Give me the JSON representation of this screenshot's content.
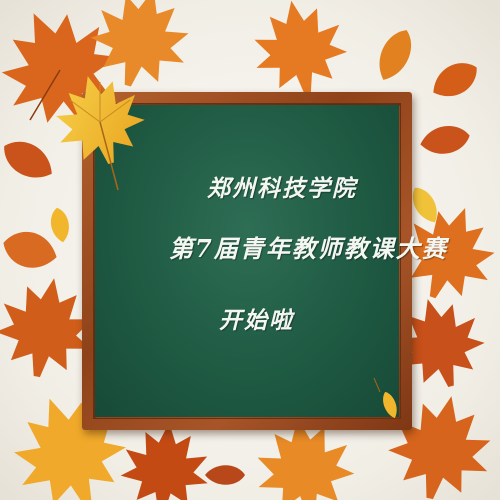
{
  "board": {
    "line1": "郑州科技学院",
    "line2": "第7届青年教师教课大赛",
    "line3": "开始啦"
  },
  "colors": {
    "board": "#1f5a43",
    "frame": "#9a4c22",
    "chalk": "#f4f6f2",
    "leaf_orange": "#e0741f",
    "leaf_red": "#c44a14",
    "leaf_yellow": "#f2b62c"
  },
  "decorations": [
    "maple-leaf-icon",
    "chestnut-leaf-icon"
  ]
}
